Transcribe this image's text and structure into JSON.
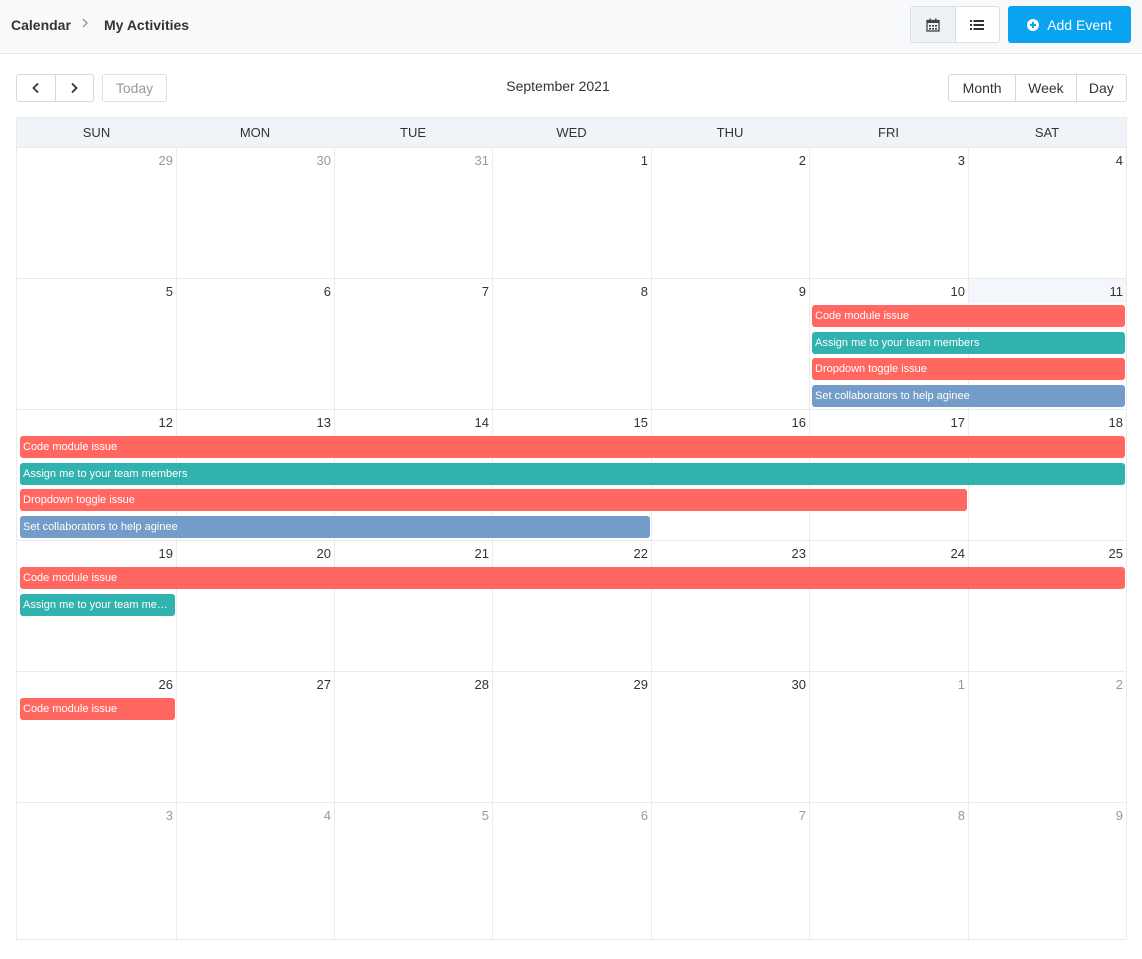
{
  "breadcrumb": {
    "root": "Calendar",
    "current": "My Activities"
  },
  "header": {
    "add_event_label": "Add Event",
    "accent_color": "#0aa3f0"
  },
  "view_toggle": [
    {
      "name": "calendar-view",
      "icon": "calendar-icon",
      "active": true
    },
    {
      "name": "list-view",
      "icon": "list-icon",
      "active": false
    }
  ],
  "toolbar": {
    "today_label": "Today",
    "title": "September 2021",
    "ranges": [
      {
        "label": "Month",
        "active": true
      },
      {
        "label": "Week",
        "active": false
      },
      {
        "label": "Day",
        "active": false
      }
    ]
  },
  "weekdays": [
    "SUN",
    "MON",
    "TUE",
    "WED",
    "THU",
    "FRI",
    "SAT"
  ],
  "weeks": [
    [
      {
        "d": "29",
        "other": true
      },
      {
        "d": "30",
        "other": true
      },
      {
        "d": "31",
        "other": true
      },
      {
        "d": "1"
      },
      {
        "d": "2"
      },
      {
        "d": "3"
      },
      {
        "d": "4"
      }
    ],
    [
      {
        "d": "5"
      },
      {
        "d": "6"
      },
      {
        "d": "7"
      },
      {
        "d": "8"
      },
      {
        "d": "9"
      },
      {
        "d": "10"
      },
      {
        "d": "11",
        "today": true
      }
    ],
    [
      {
        "d": "12"
      },
      {
        "d": "13"
      },
      {
        "d": "14"
      },
      {
        "d": "15"
      },
      {
        "d": "16"
      },
      {
        "d": "17"
      },
      {
        "d": "18"
      }
    ],
    [
      {
        "d": "19"
      },
      {
        "d": "20"
      },
      {
        "d": "21"
      },
      {
        "d": "22"
      },
      {
        "d": "23"
      },
      {
        "d": "24"
      },
      {
        "d": "25"
      }
    ],
    [
      {
        "d": "26"
      },
      {
        "d": "27"
      },
      {
        "d": "28"
      },
      {
        "d": "29"
      },
      {
        "d": "30"
      },
      {
        "d": "1",
        "other": true
      },
      {
        "d": "2",
        "other": true
      }
    ],
    [
      {
        "d": "3",
        "other": true
      },
      {
        "d": "4",
        "other": true
      },
      {
        "d": "5",
        "other": true
      },
      {
        "d": "6",
        "other": true
      },
      {
        "d": "7",
        "other": true
      },
      {
        "d": "8",
        "other": true
      },
      {
        "d": "9",
        "other": true
      }
    ]
  ],
  "event_colors": {
    "red": "#ff6760",
    "teal": "#30b2ae",
    "blue": "#739cc9"
  },
  "events": [
    {
      "week": 1,
      "start_day": 5,
      "end_day": 6,
      "lane": 0,
      "title": "Code module issue",
      "color": "red"
    },
    {
      "week": 1,
      "start_day": 5,
      "end_day": 6,
      "lane": 1,
      "title": "Assign me to your team members",
      "color": "teal"
    },
    {
      "week": 1,
      "start_day": 5,
      "end_day": 6,
      "lane": 2,
      "title": "Dropdown toggle issue",
      "color": "red"
    },
    {
      "week": 1,
      "start_day": 5,
      "end_day": 6,
      "lane": 3,
      "title": "Set collaborators to help aginee",
      "color": "blue"
    },
    {
      "week": 2,
      "start_day": 0,
      "end_day": 6,
      "lane": 0,
      "title": "Code module issue",
      "color": "red"
    },
    {
      "week": 2,
      "start_day": 0,
      "end_day": 6,
      "lane": 1,
      "title": "Assign me to your team members",
      "color": "teal"
    },
    {
      "week": 2,
      "start_day": 0,
      "end_day": 5,
      "lane": 2,
      "title": "Dropdown toggle issue",
      "color": "red"
    },
    {
      "week": 2,
      "start_day": 0,
      "end_day": 3,
      "lane": 3,
      "title": "Set collaborators to help aginee",
      "color": "blue"
    },
    {
      "week": 3,
      "start_day": 0,
      "end_day": 6,
      "lane": 0,
      "title": "Code module issue",
      "color": "red"
    },
    {
      "week": 3,
      "start_day": 0,
      "end_day": 0,
      "lane": 1,
      "title": "Assign me to your team members",
      "color": "teal"
    },
    {
      "week": 4,
      "start_day": 0,
      "end_day": 0,
      "lane": 0,
      "title": "Code module issue",
      "color": "red"
    }
  ]
}
